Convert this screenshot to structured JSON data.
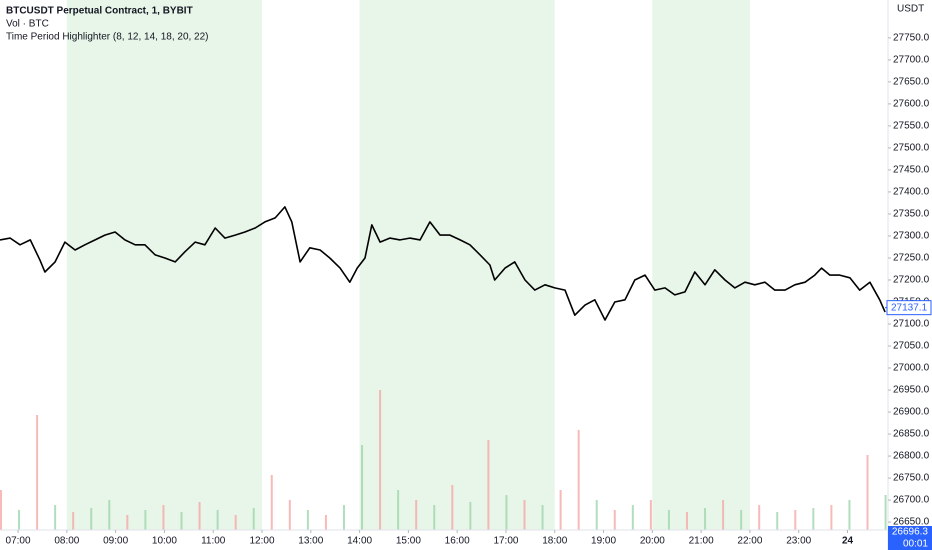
{
  "chart_data": {
    "type": "line",
    "title": "BTCUSDT Perpetual Contract, 1, BYBIT",
    "indicators": [
      "Vol · BTC",
      "Time Period Highlighter (8, 12, 14, 18, 20, 22)"
    ],
    "currency": "USDT",
    "color": "#000000",
    "highlight_periods": [
      [
        8,
        12
      ],
      [
        14,
        18
      ],
      [
        20,
        22
      ]
    ],
    "highlight_color": "#e8f5e9",
    "xlim": [
      6.63,
      24.83
    ],
    "ylim": [
      26632,
      27836
    ],
    "xticks": [
      {
        "value": 7,
        "label": "07:00"
      },
      {
        "value": 8,
        "label": "08:00"
      },
      {
        "value": 9,
        "label": "09:00"
      },
      {
        "value": 10,
        "label": "10:00"
      },
      {
        "value": 11,
        "label": "11:00"
      },
      {
        "value": 12,
        "label": "12:00"
      },
      {
        "value": 13,
        "label": "13:00"
      },
      {
        "value": 14,
        "label": "14:00"
      },
      {
        "value": 15,
        "label": "15:00"
      },
      {
        "value": 16,
        "label": "16:00"
      },
      {
        "value": 17,
        "label": "17:00"
      },
      {
        "value": 18,
        "label": "18:00"
      },
      {
        "value": 19,
        "label": "19:00"
      },
      {
        "value": 20,
        "label": "20:00"
      },
      {
        "value": 21,
        "label": "21:00"
      },
      {
        "value": 22,
        "label": "22:00"
      },
      {
        "value": 23,
        "label": "23:00"
      },
      {
        "value": 24,
        "label": "24"
      }
    ],
    "yticks": [
      {
        "value": 26650,
        "label": "26650.0"
      },
      {
        "value": 26700,
        "label": "26700.0"
      },
      {
        "value": 26750,
        "label": "26750.0"
      },
      {
        "value": 26800,
        "label": "26800.0"
      },
      {
        "value": 26850,
        "label": "26850.0"
      },
      {
        "value": 26900,
        "label": "26900.0"
      },
      {
        "value": 26950,
        "label": "26950.0"
      },
      {
        "value": 27000,
        "label": "27000.0"
      },
      {
        "value": 27050,
        "label": "27050.0"
      },
      {
        "value": 27100,
        "label": "27100.0"
      },
      {
        "value": 27150,
        "label": "27150.0"
      },
      {
        "value": 27200,
        "label": "27200.0"
      },
      {
        "value": 27250,
        "label": "27250.0"
      },
      {
        "value": 27300,
        "label": "27300.0"
      },
      {
        "value": 27350,
        "label": "27350.0"
      },
      {
        "value": 27400,
        "label": "27400.0"
      },
      {
        "value": 27450,
        "label": "27450.0"
      },
      {
        "value": 27500,
        "label": "27500.0"
      },
      {
        "value": 27550,
        "label": "27550.0"
      },
      {
        "value": 27600,
        "label": "27600.0"
      },
      {
        "value": 27650,
        "label": "27650.0"
      },
      {
        "value": 27700,
        "label": "27700.0"
      },
      {
        "value": 27750,
        "label": "27750.0"
      }
    ],
    "x": [
      6.63,
      6.84,
      7.04,
      7.25,
      7.45,
      7.55,
      7.76,
      7.96,
      8.17,
      8.37,
      8.58,
      8.78,
      8.99,
      9.19,
      9.4,
      9.6,
      9.81,
      10.01,
      10.22,
      10.42,
      10.63,
      10.83,
      11.04,
      11.24,
      11.45,
      11.65,
      11.86,
      12.06,
      12.27,
      12.47,
      12.61,
      12.78,
      12.98,
      13.19,
      13.39,
      13.6,
      13.8,
      13.95,
      14.11,
      14.25,
      14.42,
      14.62,
      14.83,
      15.03,
      15.24,
      15.44,
      15.65,
      15.85,
      16.06,
      16.26,
      16.47,
      16.67,
      16.77,
      16.98,
      17.18,
      17.39,
      17.59,
      17.8,
      18.0,
      18.21,
      18.41,
      18.62,
      18.82,
      19.03,
      19.23,
      19.44,
      19.64,
      19.85,
      20.05,
      20.26,
      20.46,
      20.67,
      20.87,
      21.08,
      21.28,
      21.49,
      21.69,
      21.9,
      22.1,
      22.31,
      22.51,
      22.72,
      22.92,
      23.13,
      23.33,
      23.47,
      23.64,
      23.84,
      24.05,
      24.25,
      24.46,
      24.66,
      24.77
    ],
    "values": [
      27291,
      27295,
      27280,
      27291,
      27245,
      27218,
      27241,
      27286,
      27268,
      27280,
      27291,
      27302,
      27309,
      27291,
      27280,
      27280,
      27257,
      27250,
      27241,
      27264,
      27286,
      27280,
      27318,
      27295,
      27302,
      27309,
      27318,
      27332,
      27341,
      27366,
      27332,
      27241,
      27273,
      27268,
      27250,
      27227,
      27195,
      27227,
      27250,
      27325,
      27286,
      27295,
      27291,
      27295,
      27291,
      27332,
      27302,
      27302,
      27291,
      27280,
      27257,
      27234,
      27200,
      27227,
      27241,
      27200,
      27177,
      27189,
      27182,
      27177,
      27120,
      27143,
      27155,
      27109,
      27150,
      27155,
      27200,
      27211,
      27177,
      27182,
      27166,
      27173,
      27218,
      27189,
      27223,
      27200,
      27182,
      27195,
      27189,
      27195,
      27177,
      27177,
      27189,
      27195,
      27211,
      27227,
      27211,
      27211,
      27205,
      27177,
      27195,
      27155,
      27127
    ],
    "last_price": {
      "value": 27137.1,
      "label": "27137.1"
    },
    "volume_label": "26696.3",
    "countdown": "00:01",
    "volume": {
      "x": [
        6.65,
        7.02,
        7.39,
        7.76,
        8.13,
        8.5,
        8.87,
        9.24,
        9.61,
        9.98,
        10.35,
        10.72,
        11.09,
        11.46,
        11.83,
        12.2,
        12.57,
        12.94,
        13.31,
        13.68,
        14.05,
        14.42,
        14.79,
        15.16,
        15.53,
        15.9,
        16.27,
        16.64,
        17.01,
        17.38,
        17.75,
        18.12,
        18.49,
        18.86,
        19.23,
        19.6,
        19.97,
        20.34,
        20.71,
        21.08,
        21.45,
        21.82,
        22.19,
        22.56,
        22.93,
        23.3,
        23.67,
        24.04,
        24.41,
        24.78
      ],
      "values": [
        40,
        20,
        115,
        25,
        18,
        22,
        30,
        15,
        20,
        25,
        18,
        28,
        20,
        15,
        22,
        55,
        30,
        20,
        15,
        25,
        85,
        140,
        40,
        30,
        25,
        45,
        28,
        90,
        35,
        30,
        25,
        40,
        100,
        30,
        20,
        25,
        30,
        20,
        18,
        22,
        30,
        20,
        25,
        18,
        20,
        22,
        25,
        30,
        75,
        35
      ],
      "colors": [
        "#f5a9a6",
        "#9fd6ad",
        "#f5a9a6",
        "#9fd6ad",
        "#f5a9a6",
        "#9fd6ad",
        "#9fd6ad",
        "#f5a9a6",
        "#9fd6ad",
        "#f5a9a6",
        "#9fd6ad",
        "#f5a9a6",
        "#9fd6ad",
        "#f5a9a6",
        "#9fd6ad",
        "#f5a9a6",
        "#f5a9a6",
        "#9fd6ad",
        "#f5a9a6",
        "#9fd6ad",
        "#9fd6ad",
        "#f5a9a6",
        "#9fd6ad",
        "#f5a9a6",
        "#9fd6ad",
        "#f5a9a6",
        "#9fd6ad",
        "#f5a9a6",
        "#9fd6ad",
        "#f5a9a6",
        "#9fd6ad",
        "#f5a9a6",
        "#f5a9a6",
        "#9fd6ad",
        "#f5a9a6",
        "#9fd6ad",
        "#f5a9a6",
        "#9fd6ad",
        "#f5a9a6",
        "#9fd6ad",
        "#f5a9a6",
        "#9fd6ad",
        "#f5a9a6",
        "#9fd6ad",
        "#f5a9a6",
        "#9fd6ad",
        "#f5a9a6",
        "#9fd6ad",
        "#f5a9a6",
        "#9fd6ad"
      ]
    }
  }
}
